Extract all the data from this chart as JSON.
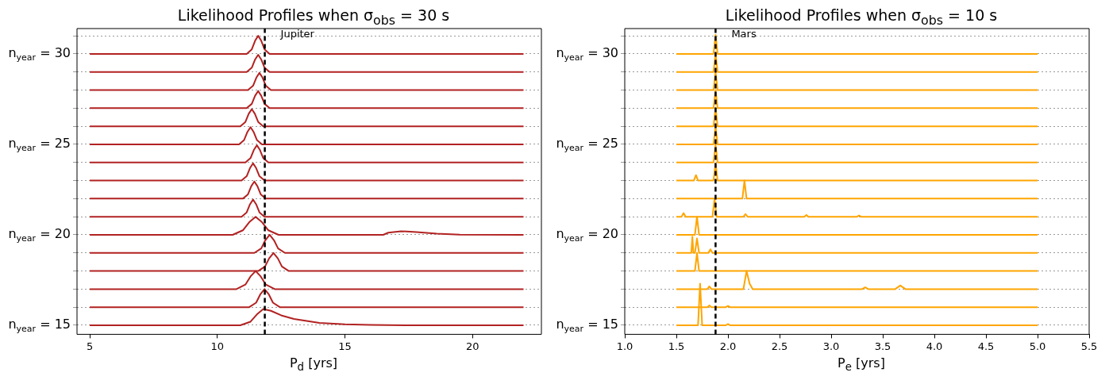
{
  "chart_data": [
    {
      "type": "line",
      "title": "Likelihood Profiles when σ$_{obs}$ = 30 s",
      "xlabel": "P$_{d}$ [yrs]",
      "xlim": [
        4.5,
        22.7
      ],
      "xticks": [
        5,
        10,
        15,
        20
      ],
      "ylim": [
        14.5,
        31.4
      ],
      "yticks": [
        {
          "value": 15,
          "label": "n$_{year}$ = 15"
        },
        {
          "value": 16,
          "label": null
        },
        {
          "value": 17,
          "label": null
        },
        {
          "value": 18,
          "label": null
        },
        {
          "value": 19,
          "label": null
        },
        {
          "value": 20,
          "label": "n$_{year}$ = 20"
        },
        {
          "value": 21,
          "label": null
        },
        {
          "value": 22,
          "label": null
        },
        {
          "value": 23,
          "label": null
        },
        {
          "value": 24,
          "label": null
        },
        {
          "value": 25,
          "label": "n$_{year}$ = 25"
        },
        {
          "value": 26,
          "label": null
        },
        {
          "value": 27,
          "label": null
        },
        {
          "value": 28,
          "label": null
        },
        {
          "value": 29,
          "label": null
        },
        {
          "value": 30,
          "label": "n$_{year}$ = 30"
        },
        {
          "value": 31,
          "label": null
        }
      ],
      "grid": "y",
      "marker": "none",
      "ref_lines": [
        {
          "axis": "x",
          "value": 11.86,
          "label": "Jupiter",
          "color": "#000000",
          "line_style": "dashed"
        }
      ],
      "series": [
        {
          "color": "#b22222",
          "x": [
            5,
            11.15,
            11.35,
            11.48,
            11.6,
            11.72,
            11.85,
            12.05,
            22
          ],
          "values": [
            30,
            30,
            30.25,
            30.73,
            31,
            30.73,
            30.25,
            30,
            30
          ]
        },
        {
          "color": "#b22222",
          "x": [
            5,
            11.15,
            11.35,
            11.48,
            11.6,
            11.72,
            11.85,
            12.05,
            22
          ],
          "values": [
            29,
            29,
            29.24,
            29.69,
            29.95,
            29.69,
            29.24,
            29,
            29
          ]
        },
        {
          "color": "#b22222",
          "x": [
            5,
            11.2,
            11.4,
            11.53,
            11.65,
            11.77,
            11.9,
            12.1,
            22
          ],
          "values": [
            28,
            28,
            28.24,
            28.69,
            28.95,
            28.69,
            28.24,
            28,
            28
          ]
        },
        {
          "color": "#b22222",
          "x": [
            5,
            11.15,
            11.35,
            11.48,
            11.6,
            11.72,
            11.85,
            12.05,
            22
          ],
          "values": [
            27,
            27,
            27.24,
            27.69,
            27.95,
            27.69,
            27.24,
            27,
            27
          ]
        },
        {
          "color": "#b22222",
          "x": [
            5,
            10.9,
            11.1,
            11.23,
            11.35,
            11.47,
            11.6,
            11.8,
            22
          ],
          "values": [
            26,
            26,
            26.24,
            26.69,
            26.95,
            26.69,
            26.24,
            26,
            26
          ]
        },
        {
          "color": "#b22222",
          "x": [
            5,
            10.85,
            11.05,
            11.18,
            11.3,
            11.42,
            11.55,
            11.75,
            22
          ],
          "values": [
            25,
            25,
            25.24,
            25.69,
            25.95,
            25.69,
            25.24,
            25,
            25
          ]
        },
        {
          "color": "#b22222",
          "x": [
            5,
            11.1,
            11.3,
            11.43,
            11.55,
            11.67,
            11.8,
            12,
            22
          ],
          "values": [
            24,
            24,
            24.24,
            24.69,
            24.95,
            24.69,
            24.24,
            24,
            24
          ]
        },
        {
          "color": "#b22222",
          "x": [
            5,
            10.95,
            11.15,
            11.28,
            11.4,
            11.52,
            11.65,
            11.85,
            22
          ],
          "values": [
            23,
            23,
            23.24,
            23.69,
            23.95,
            23.69,
            23.24,
            23,
            23
          ]
        },
        {
          "color": "#b22222",
          "x": [
            5,
            11,
            11.2,
            11.33,
            11.45,
            11.57,
            11.7,
            11.9,
            22
          ],
          "values": [
            22,
            22,
            22.24,
            22.69,
            22.95,
            22.69,
            22.24,
            22,
            22
          ]
        },
        {
          "color": "#b22222",
          "x": [
            5,
            10.95,
            11.15,
            11.28,
            11.4,
            11.52,
            11.65,
            11.85,
            22
          ],
          "values": [
            21,
            21,
            21.24,
            21.69,
            21.95,
            21.69,
            21.24,
            21,
            21
          ]
        },
        {
          "color": "#b22222",
          "x": [
            5,
            10.6,
            11,
            11.25,
            11.5,
            11.75,
            12,
            12.4,
            16.5,
            16.7,
            17.2,
            17.8,
            18.6,
            19.5,
            22
          ],
          "values": [
            20,
            20,
            20.25,
            20.7,
            21,
            20.7,
            20.25,
            20,
            20,
            20.12,
            20.2,
            20.15,
            20.06,
            20.01,
            20
          ]
        },
        {
          "color": "#b22222",
          "x": [
            5,
            11.45,
            11.72,
            11.88,
            12.05,
            12.22,
            12.38,
            12.65,
            22
          ],
          "values": [
            19,
            19,
            19.25,
            19.7,
            20,
            19.7,
            19.25,
            19,
            19
          ]
        },
        {
          "color": "#b22222",
          "x": [
            5,
            11.6,
            11.87,
            12.03,
            12.2,
            12.37,
            12.53,
            12.8,
            22
          ],
          "values": [
            18,
            18,
            18.25,
            18.7,
            19,
            18.7,
            18.25,
            18,
            18
          ]
        },
        {
          "color": "#b22222",
          "x": [
            5,
            10.75,
            11.1,
            11.3,
            11.5,
            11.7,
            11.9,
            12.25,
            22
          ],
          "values": [
            17,
            17,
            17.25,
            17.7,
            18,
            17.7,
            17.25,
            17,
            17
          ]
        },
        {
          "color": "#b22222",
          "x": [
            5,
            11.25,
            11.52,
            11.68,
            11.85,
            12.02,
            12.18,
            12.45,
            22
          ],
          "values": [
            16,
            16,
            16.25,
            16.7,
            17,
            16.7,
            16.25,
            16,
            16
          ]
        },
        {
          "color": "#b22222",
          "x": [
            5,
            10.9,
            11.3,
            11.55,
            11.8,
            12.1,
            12.5,
            13,
            14,
            15,
            16,
            17.5,
            22
          ],
          "values": [
            15,
            15,
            15.2,
            15.6,
            15.9,
            15.8,
            15.55,
            15.35,
            15.13,
            15.05,
            15.02,
            15,
            15
          ]
        }
      ]
    },
    {
      "type": "line",
      "title": "Likelihood Profiles when σ$_{obs}$ = 10 s",
      "xlabel": "P$_{e}$ [yrs]",
      "xlim": [
        1.0,
        5.5
      ],
      "xticks": [
        {
          "value": 1,
          "label": "1.0"
        },
        {
          "value": 1.5,
          "label": "1.5"
        },
        {
          "value": 2,
          "label": "2.0"
        },
        {
          "value": 2.5,
          "label": "2.5"
        },
        {
          "value": 3,
          "label": "3.0"
        },
        {
          "value": 3.5,
          "label": "3.5"
        },
        {
          "value": 4,
          "label": "4.0"
        },
        {
          "value": 4.5,
          "label": "4.5"
        },
        {
          "value": 5,
          "label": "5.0"
        },
        {
          "value": 5.5,
          "label": "5.5"
        }
      ],
      "ylim": [
        14.5,
        31.4
      ],
      "yticks": [
        {
          "value": 15,
          "label": "n$_{year}$ = 15"
        },
        {
          "value": 16,
          "label": null
        },
        {
          "value": 17,
          "label": null
        },
        {
          "value": 18,
          "label": null
        },
        {
          "value": 19,
          "label": null
        },
        {
          "value": 20,
          "label": "n$_{year}$ = 20"
        },
        {
          "value": 21,
          "label": null
        },
        {
          "value": 22,
          "label": null
        },
        {
          "value": 23,
          "label": null
        },
        {
          "value": 24,
          "label": null
        },
        {
          "value": 25,
          "label": "n$_{year}$ = 25"
        },
        {
          "value": 26,
          "label": null
        },
        {
          "value": 27,
          "label": null
        },
        {
          "value": 28,
          "label": null
        },
        {
          "value": 29,
          "label": null
        },
        {
          "value": 30,
          "label": "n$_{year}$ = 30"
        },
        {
          "value": 31,
          "label": null
        }
      ],
      "grid": "y",
      "marker": "none",
      "ref_lines": [
        {
          "axis": "x",
          "value": 1.88,
          "label": "Mars",
          "color": "#000000",
          "line_style": "dashed"
        }
      ],
      "series": [
        {
          "color": "#ffa500",
          "x": [
            1.5,
            1.86,
            1.88,
            1.9,
            5
          ],
          "values": [
            30,
            30,
            31.05,
            30,
            30
          ]
        },
        {
          "color": "#ffa500",
          "x": [
            1.5,
            1.86,
            1.88,
            1.9,
            5
          ],
          "values": [
            29,
            29,
            30,
            29,
            29
          ]
        },
        {
          "color": "#ffa500",
          "x": [
            1.5,
            1.86,
            1.88,
            1.9,
            5
          ],
          "values": [
            28,
            28,
            29,
            28,
            28
          ]
        },
        {
          "color": "#ffa500",
          "x": [
            1.5,
            1.86,
            1.88,
            1.9,
            5
          ],
          "values": [
            27,
            27,
            28,
            27,
            27
          ]
        },
        {
          "color": "#ffa500",
          "x": [
            1.5,
            1.86,
            1.88,
            1.9,
            5
          ],
          "values": [
            26,
            26,
            27,
            26,
            26
          ]
        },
        {
          "color": "#ffa500",
          "x": [
            1.5,
            1.86,
            1.88,
            1.9,
            5
          ],
          "values": [
            25,
            25,
            26,
            25,
            25
          ]
        },
        {
          "color": "#ffa500",
          "x": [
            1.5,
            1.86,
            1.88,
            1.9,
            5
          ],
          "values": [
            24,
            24,
            25,
            24,
            24
          ]
        },
        {
          "color": "#ffa500",
          "x": [
            1.5,
            1.67,
            1.69,
            1.71,
            1.86,
            1.88,
            1.9,
            5
          ],
          "values": [
            23,
            23,
            23.3,
            23,
            23,
            23.95,
            23,
            23
          ]
        },
        {
          "color": "#ffa500",
          "x": [
            1.5,
            2.14,
            2.16,
            2.18,
            5
          ],
          "values": [
            22,
            22,
            23,
            22,
            22
          ]
        },
        {
          "color": "#ffa500",
          "x": [
            1.5,
            1.55,
            1.57,
            1.59,
            1.85,
            1.87,
            1.89,
            2.15,
            2.17,
            2.19,
            2.74,
            2.76,
            2.78,
            3.25,
            3.27,
            3.29,
            5
          ],
          "values": [
            21,
            21,
            21.2,
            21,
            21,
            22,
            21,
            21,
            21.15,
            21,
            21,
            21.1,
            21,
            21,
            21.07,
            21,
            21
          ]
        },
        {
          "color": "#ffa500",
          "x": [
            1.5,
            1.68,
            1.7,
            1.72,
            5
          ],
          "values": [
            20,
            20,
            21,
            20,
            20
          ]
        },
        {
          "color": "#ffa500",
          "x": [
            1.5,
            1.645,
            1.655,
            1.665,
            1.68,
            1.7,
            1.72,
            1.81,
            1.83,
            1.85,
            5
          ],
          "values": [
            19,
            19,
            19.9,
            19,
            19,
            19.8,
            19,
            19,
            19.2,
            19,
            19
          ]
        },
        {
          "color": "#ffa500",
          "x": [
            1.5,
            1.68,
            1.7,
            1.72,
            5
          ],
          "values": [
            18,
            18,
            19,
            18,
            18
          ]
        },
        {
          "color": "#ffa500",
          "x": [
            1.5,
            1.8,
            1.82,
            1.84,
            2.15,
            2.18,
            2.21,
            2.24,
            3.3,
            3.33,
            3.36,
            3.62,
            3.67,
            3.72,
            5
          ],
          "values": [
            17,
            17,
            17.15,
            17,
            17,
            18,
            17.3,
            17,
            17,
            17.1,
            17,
            17,
            17.2,
            17,
            17
          ]
        },
        {
          "color": "#ffa500",
          "x": [
            1.5,
            1.8,
            1.82,
            1.84,
            1.98,
            2,
            2.02,
            5
          ],
          "values": [
            16,
            16,
            16.1,
            16,
            16,
            16.07,
            16,
            16
          ]
        },
        {
          "color": "#ffa500",
          "x": [
            1.5,
            1.71,
            1.73,
            1.75,
            1.98,
            2,
            2.02,
            5
          ],
          "values": [
            15,
            15,
            17.3,
            15,
            15,
            15.07,
            15,
            15
          ]
        }
      ]
    }
  ]
}
